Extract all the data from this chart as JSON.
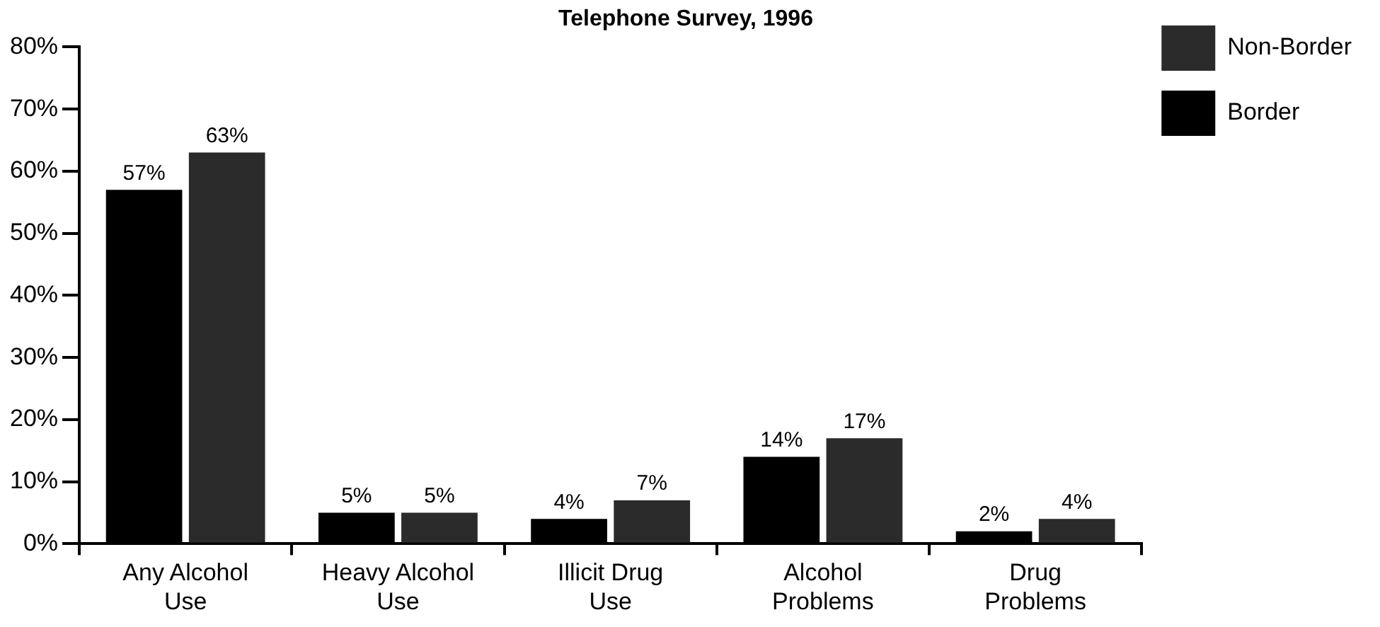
{
  "chart_data": {
    "type": "bar",
    "title": "Telephone Survey, 1996",
    "categories": [
      "Any Alcohol Use",
      "Heavy Alcohol Use",
      "Illicit Drug Use",
      "Alcohol Problems",
      "Drug Problems"
    ],
    "series": [
      {
        "name": "Border",
        "color": "#000000",
        "values": [
          57,
          5,
          4,
          14,
          2
        ],
        "value_labels": [
          "57%",
          "5%",
          "4%",
          "14%",
          "2%"
        ]
      },
      {
        "name": "Non-Border",
        "color": "#2b2b2b",
        "values": [
          63,
          5,
          7,
          17,
          4
        ],
        "value_labels": [
          "63%",
          "5%",
          "7%",
          "17%",
          "4%"
        ]
      }
    ],
    "ylim": [
      0,
      80
    ],
    "yticks": [
      {
        "value": 0,
        "label": "0%"
      },
      {
        "value": 10,
        "label": "10%"
      },
      {
        "value": 20,
        "label": "20%"
      },
      {
        "value": 30,
        "label": "30%"
      },
      {
        "value": 40,
        "label": "40%"
      },
      {
        "value": 50,
        "label": "50%"
      },
      {
        "value": 60,
        "label": "60%"
      },
      {
        "value": 70,
        "label": "70%"
      },
      {
        "value": 80,
        "label": "80%"
      }
    ],
    "grid": false,
    "legend": "top right"
  }
}
